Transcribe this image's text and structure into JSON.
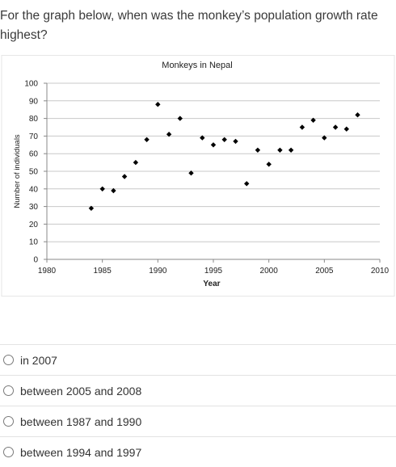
{
  "question": {
    "text": "For the graph below, when was the monkey’s population growth rate highest?"
  },
  "chart_data": {
    "type": "scatter",
    "title": "Monkeys in Nepal",
    "xlabel": "Year",
    "ylabel": "Number of individuals",
    "xlim": [
      1980,
      2010
    ],
    "ylim": [
      0,
      100
    ],
    "xticks": [
      1980,
      1985,
      1990,
      1995,
      2000,
      2005,
      2010
    ],
    "yticks": [
      0,
      10,
      20,
      30,
      40,
      50,
      60,
      70,
      80,
      90,
      100
    ],
    "grid": true,
    "marker": "diamond",
    "marker_color": "#000000",
    "points": [
      {
        "x": 1984,
        "y": 29
      },
      {
        "x": 1985,
        "y": 40
      },
      {
        "x": 1986,
        "y": 39
      },
      {
        "x": 1987,
        "y": 47
      },
      {
        "x": 1988,
        "y": 55
      },
      {
        "x": 1989,
        "y": 68
      },
      {
        "x": 1990,
        "y": 88
      },
      {
        "x": 1991,
        "y": 71
      },
      {
        "x": 1992,
        "y": 80
      },
      {
        "x": 1993,
        "y": 49
      },
      {
        "x": 1994,
        "y": 69
      },
      {
        "x": 1995,
        "y": 65
      },
      {
        "x": 1996,
        "y": 68
      },
      {
        "x": 1997,
        "y": 67
      },
      {
        "x": 1998,
        "y": 43
      },
      {
        "x": 1999,
        "y": 62
      },
      {
        "x": 2000,
        "y": 54
      },
      {
        "x": 2001,
        "y": 62
      },
      {
        "x": 2002,
        "y": 62
      },
      {
        "x": 2003,
        "y": 75
      },
      {
        "x": 2004,
        "y": 79
      },
      {
        "x": 2005,
        "y": 69
      },
      {
        "x": 2006,
        "y": 75
      },
      {
        "x": 2007,
        "y": 74
      },
      {
        "x": 2008,
        "y": 82
      }
    ]
  },
  "options": [
    {
      "label": "in 2007"
    },
    {
      "label": "between 2005 and 2008"
    },
    {
      "label": "between 1987 and 1990"
    },
    {
      "label": "between 1994 and 1997"
    }
  ]
}
